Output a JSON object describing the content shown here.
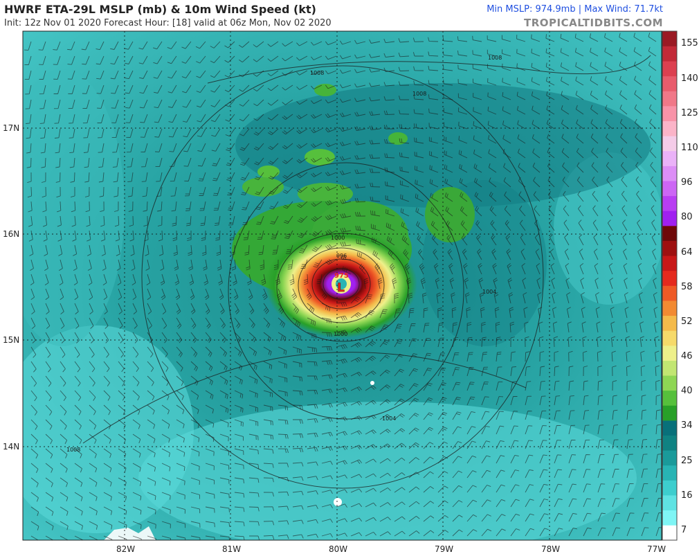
{
  "header": {
    "title": "HWRF ETA-29L MSLP (mb) & 10m Wind Speed (kt)",
    "subtitle": "Init: 12z Nov 01 2020   Forecast Hour: [18]   valid at 06z Mon, Nov 02 2020",
    "stats": "Min MSLP: 974.9mb | Max Wind: 71.7kt",
    "watermark": "TROPICALTIDBITS.COM"
  },
  "map": {
    "lon_labels": [
      "82W",
      "81W",
      "80W",
      "79W",
      "78W",
      "77W"
    ],
    "lat_labels": [
      "17N",
      "16N",
      "15N",
      "14N"
    ],
    "low_marker": "L",
    "center_pressure_label": "975",
    "isobar_labels": [
      "1008",
      "1008",
      "1008",
      "1004",
      "1004",
      "1000",
      "1000",
      "996",
      "1008"
    ]
  },
  "colorbar": {
    "labels": [
      "155",
      "140",
      "125",
      "110",
      "96",
      "80",
      "64",
      "58",
      "52",
      "46",
      "40",
      "34",
      "25",
      "16",
      "7"
    ],
    "colors": [
      "#ffffff",
      "#7ff5f5",
      "#5fe3e3",
      "#3dcece",
      "#28b4b4",
      "#1a9a9a",
      "#0f8282",
      "#08707a",
      "#28a028",
      "#56c03c",
      "#8ed654",
      "#c2e672",
      "#eef08a",
      "#f6da6a",
      "#f4ba4a",
      "#f28a32",
      "#ee5a26",
      "#e42a1e",
      "#c81818",
      "#9e1010",
      "#6e0808",
      "#a020f0",
      "#b83ef2",
      "#cc66f4",
      "#dc8ef6",
      "#eab2f8",
      "#f4cce8",
      "#fbb4c8",
      "#f893a8",
      "#f07888",
      "#e85c6c",
      "#dc4050",
      "#c22a38",
      "#9a1a24"
    ]
  }
}
